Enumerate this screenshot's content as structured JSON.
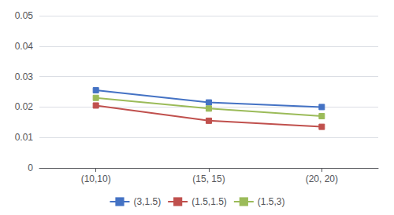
{
  "chart_data": {
    "type": "line",
    "categories": [
      "(10,10)",
      "(15, 15)",
      "(20, 20)"
    ],
    "series": [
      {
        "name": "(3,1.5)",
        "color": "#4472C4",
        "marker": "square",
        "values": [
          0.0255,
          0.0215,
          0.02
        ]
      },
      {
        "name": "(1.5,1.5)",
        "color": "#C0504D",
        "marker": "square",
        "values": [
          0.0205,
          0.0155,
          0.0135
        ]
      },
      {
        "name": "(1.5,3)",
        "color": "#9BBB59",
        "marker": "square",
        "values": [
          0.023,
          0.0195,
          0.017
        ]
      }
    ],
    "ylim": [
      0,
      0.05
    ],
    "yticks": [
      0,
      0.01,
      0.02,
      0.03,
      0.04,
      0.05
    ],
    "grid": true,
    "legend": "bottom"
  }
}
